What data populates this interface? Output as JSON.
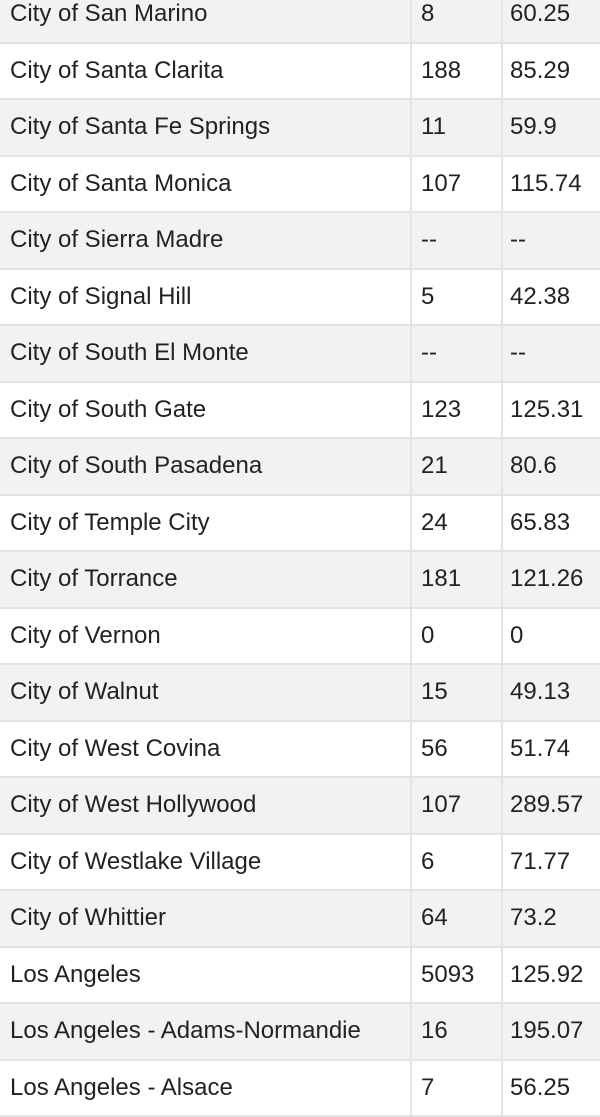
{
  "table": {
    "rows": [
      [
        "City of San Marino",
        "8",
        "60.25"
      ],
      [
        "City of Santa Clarita",
        "188",
        "85.29"
      ],
      [
        "City of Santa Fe Springs",
        "11",
        "59.9"
      ],
      [
        "City of Santa Monica",
        "107",
        "115.74"
      ],
      [
        "City of Sierra Madre",
        "--",
        "--"
      ],
      [
        "City of Signal Hill",
        "5",
        "42.38"
      ],
      [
        "City of South El Monte",
        "--",
        "--"
      ],
      [
        "City of South Gate",
        "123",
        "125.31"
      ],
      [
        "City of South Pasadena",
        "21",
        "80.6"
      ],
      [
        "City of Temple City",
        "24",
        "65.83"
      ],
      [
        "City of Torrance",
        "181",
        "121.26"
      ],
      [
        "City of Vernon",
        "0",
        "0"
      ],
      [
        "City of Walnut",
        "15",
        "49.13"
      ],
      [
        "City of West Covina",
        "56",
        "51.74"
      ],
      [
        "City of West Hollywood",
        "107",
        "289.57"
      ],
      [
        "City of Westlake Village",
        "6",
        "71.77"
      ],
      [
        "City of Whittier",
        "64",
        "73.2"
      ],
      [
        "Los Angeles",
        "5093",
        "125.92"
      ],
      [
        "Los Angeles - Adams-Normandie",
        "16",
        "195.07"
      ],
      [
        "Los Angeles - Alsace",
        "7",
        "56.25"
      ]
    ]
  }
}
